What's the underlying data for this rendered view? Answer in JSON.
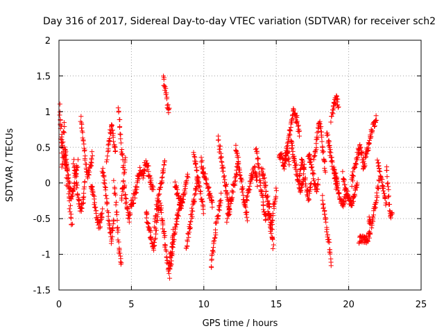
{
  "chart_data": {
    "type": "scatter",
    "title": "Day 316 of 2017, Sidereal Day-to-day VTEC variation (SDTVAR) for receiver sch2",
    "xlabel": "GPS time / hours",
    "ylabel": "SDTVAR / TECUs",
    "xlim": [
      0,
      25
    ],
    "ylim": [
      -1.5,
      2
    ],
    "xticks": [
      0,
      5,
      10,
      15,
      20,
      25
    ],
    "xtick_labels": [
      "0",
      "5",
      "10",
      "15",
      "20",
      "25"
    ],
    "yticks": [
      -1.5,
      -1,
      -0.5,
      0,
      0.5,
      1,
      1.5,
      2
    ],
    "ytick_labels": [
      "-1.5",
      "-1",
      "-0.5",
      "0",
      "0.5",
      "1",
      "1.5",
      "2"
    ],
    "grid": true,
    "marker": "+",
    "color": "#ff0000",
    "series": [
      {
        "name": "SDTVAR",
        "tracks": [
          {
            "t0": 0.0,
            "t1": 0.5,
            "y": [
              1.2,
              1.0,
              0.6,
              0.2,
              0.5,
              0.9,
              0.4,
              0.0
            ]
          },
          {
            "t0": 0.1,
            "t1": 0.9,
            "y": [
              0.9,
              0.6,
              0.3,
              0.5,
              0.2,
              -0.1,
              -0.4,
              -0.6
            ]
          },
          {
            "t0": 0.4,
            "t1": 1.3,
            "y": [
              0.4,
              0.2,
              0.0,
              -0.2,
              -0.1,
              0.1,
              0.3
            ]
          },
          {
            "t0": 1.0,
            "t1": 1.8,
            "y": [
              0.3,
              0.1,
              -0.2,
              -0.4,
              -0.3,
              0.0
            ]
          },
          {
            "t0": 1.5,
            "t1": 2.3,
            "y": [
              0.9,
              0.6,
              0.3,
              0.1,
              0.2,
              0.4
            ]
          },
          {
            "t0": 2.2,
            "t1": 3.0,
            "y": [
              0.0,
              -0.2,
              -0.5,
              -0.6,
              -0.4
            ]
          },
          {
            "t0": 3.0,
            "t1": 3.8,
            "y": [
              0.2,
              0.0,
              -0.3,
              -0.6,
              -0.8,
              -0.5
            ]
          },
          {
            "t0": 3.3,
            "t1": 3.9,
            "y": [
              0.3,
              0.5,
              0.7,
              0.8,
              0.6,
              0.4
            ]
          },
          {
            "t0": 3.8,
            "t1": 4.3,
            "y": [
              0.0,
              -0.4,
              -0.9,
              -1.2
            ]
          },
          {
            "t0": 4.1,
            "t1": 4.6,
            "y": [
              1.1,
              0.8,
              0.5,
              0.3,
              0.1,
              0.4
            ]
          },
          {
            "t0": 4.3,
            "t1": 5.0,
            "y": [
              -0.2,
              0.0,
              -0.3,
              -0.5,
              -0.3
            ]
          },
          {
            "t0": 5.0,
            "t1": 5.8,
            "y": [
              -0.3,
              -0.2,
              0.0,
              0.2,
              0.1
            ]
          },
          {
            "t0": 5.8,
            "t1": 6.5,
            "y": [
              0.1,
              0.3,
              0.2,
              0.0,
              -0.1
            ]
          },
          {
            "t0": 6.0,
            "t1": 6.9,
            "y": [
              -0.4,
              -0.6,
              -0.8,
              -0.9,
              -0.6,
              -0.3
            ]
          },
          {
            "t0": 6.6,
            "t1": 7.3,
            "y": [
              -0.6,
              -0.3,
              -0.1,
              0.1,
              0.3
            ]
          },
          {
            "t0": 7.0,
            "t1": 7.9,
            "y": [
              -0.3,
              -0.6,
              -0.9,
              -1.2,
              -1.0,
              -0.7
            ]
          },
          {
            "t0": 7.2,
            "t1": 7.6,
            "y": [
              1.5,
              1.3,
              1.1,
              1.0
            ]
          },
          {
            "t0": 7.6,
            "t1": 8.5,
            "y": [
              -1.3,
              -1.0,
              -0.6,
              -0.4,
              -0.2
            ]
          },
          {
            "t0": 8.0,
            "t1": 8.9,
            "y": [
              0.0,
              -0.2,
              -0.3,
              -0.1,
              0.1
            ]
          },
          {
            "t0": 8.8,
            "t1": 9.6,
            "y": [
              -0.9,
              -0.7,
              -0.5,
              -0.3,
              -0.1,
              0.1
            ]
          },
          {
            "t0": 9.3,
            "t1": 10.0,
            "y": [
              0.4,
              0.2,
              0.0,
              -0.2,
              -0.4
            ]
          },
          {
            "t0": 9.8,
            "t1": 10.6,
            "y": [
              0.3,
              0.1,
              -0.1,
              -0.3
            ]
          },
          {
            "t0": 10.5,
            "t1": 11.2,
            "y": [
              -1.2,
              -0.9,
              -0.6,
              -0.4,
              -0.2
            ]
          },
          {
            "t0": 11.0,
            "t1": 11.8,
            "y": [
              0.6,
              0.4,
              0.2,
              0.0,
              -0.2,
              -0.4
            ]
          },
          {
            "t0": 11.6,
            "t1": 12.4,
            "y": [
              -0.5,
              -0.3,
              -0.1,
              0.1,
              0.3
            ]
          },
          {
            "t0": 12.2,
            "t1": 13.0,
            "y": [
              0.5,
              0.3,
              0.1,
              -0.1,
              -0.3,
              -0.5
            ]
          },
          {
            "t0": 12.9,
            "t1": 13.7,
            "y": [
              -0.3,
              -0.1,
              0.1,
              0.2,
              0.0
            ]
          },
          {
            "t0": 13.6,
            "t1": 14.3,
            "y": [
              0.5,
              0.3,
              0.0,
              -0.2,
              -0.4,
              -0.5
            ]
          },
          {
            "t0": 14.0,
            "t1": 14.8,
            "y": [
              0.2,
              0.0,
              -0.3,
              -0.6,
              -0.9
            ]
          },
          {
            "t0": 14.4,
            "t1": 15.0,
            "y": [
              -0.2,
              -0.4,
              -0.6,
              -0.3,
              -0.1
            ]
          },
          {
            "t0": 15.2,
            "t1": 15.9,
            "y": [
              0.3,
              0.4,
              0.2,
              0.5,
              0.3
            ]
          },
          {
            "t0": 15.6,
            "t1": 16.6,
            "y": [
              0.3,
              0.6,
              0.8,
              1.0,
              0.9,
              0.7
            ]
          },
          {
            "t0": 16.0,
            "t1": 16.9,
            "y": [
              0.6,
              0.4,
              0.2,
              0.0,
              -0.1,
              0.1
            ]
          },
          {
            "t0": 16.6,
            "t1": 17.4,
            "y": [
              0.1,
              0.3,
              0.2,
              -0.1,
              -0.2,
              0.0
            ]
          },
          {
            "t0": 17.2,
            "t1": 17.9,
            "y": [
              0.4,
              0.3,
              0.1,
              -0.1,
              0.0
            ]
          },
          {
            "t0": 17.6,
            "t1": 18.4,
            "y": [
              0.3,
              0.6,
              0.9,
              0.5,
              0.2
            ]
          },
          {
            "t0": 18.2,
            "t1": 18.8,
            "y": [
              -0.2,
              -0.5,
              -0.8,
              -1.1
            ]
          },
          {
            "t0": 18.5,
            "t1": 19.2,
            "y": [
              0.7,
              0.5,
              0.3,
              0.1,
              -0.1
            ]
          },
          {
            "t0": 18.8,
            "t1": 19.3,
            "y": [
              0.9,
              1.1,
              1.2,
              1.1
            ]
          },
          {
            "t0": 19.0,
            "t1": 19.8,
            "y": [
              0.2,
              0.0,
              -0.2,
              -0.3,
              -0.2
            ]
          },
          {
            "t0": 19.6,
            "t1": 20.6,
            "y": [
              0.1,
              -0.1,
              -0.2,
              -0.3,
              -0.2,
              0.0
            ]
          },
          {
            "t0": 20.2,
            "t1": 21.0,
            "y": [
              0.0,
              0.2,
              0.4,
              0.5,
              0.3
            ]
          },
          {
            "t0": 20.7,
            "t1": 21.5,
            "y": [
              -0.8,
              -0.8,
              -0.8,
              -0.7
            ]
          },
          {
            "t0": 21.0,
            "t1": 21.9,
            "y": [
              0.2,
              0.4,
              0.6,
              0.8,
              0.9
            ]
          },
          {
            "t0": 21.4,
            "t1": 22.1,
            "y": [
              -0.5,
              -0.6,
              -0.4,
              -0.2,
              0.0
            ]
          },
          {
            "t0": 22.0,
            "t1": 22.6,
            "y": [
              0.3,
              0.1,
              -0.1,
              -0.3
            ]
          },
          {
            "t0": 22.6,
            "t1": 23.0,
            "y": [
              0.2,
              0.0,
              -0.3,
              -0.5,
              -0.4
            ]
          }
        ]
      }
    ]
  }
}
